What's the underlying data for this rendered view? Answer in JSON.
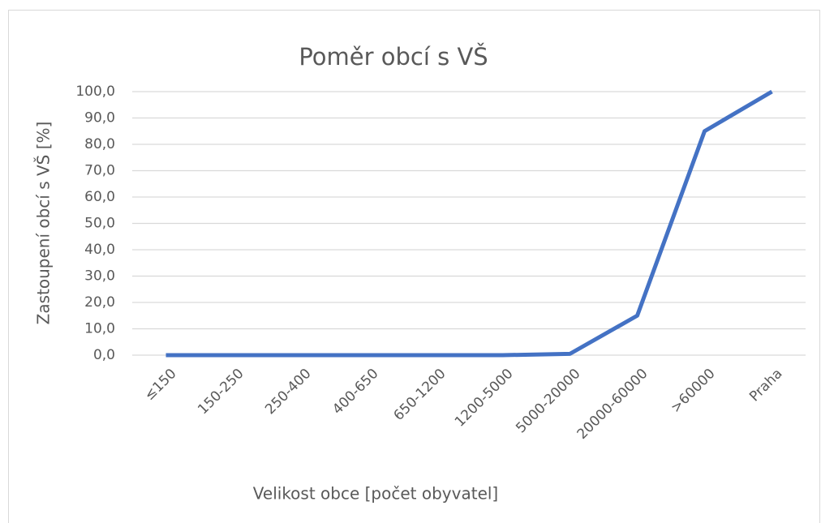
{
  "chart_data": {
    "type": "line",
    "title": "Poměr obcí s VŠ",
    "x_label": "Velikost obce [počet obyvatel]",
    "y_label": "Zastoupení obcí s VŠ [%]",
    "categories": [
      "≤150",
      "150-250",
      "250-400",
      "400-650",
      "650-1200",
      "1200-5000",
      "5000-20000",
      "20000-60000",
      ">60000",
      "Praha"
    ],
    "series": [
      {
        "name": "Zastoupení obcí s VŠ",
        "color": "#4472c4",
        "values": [
          0,
          0,
          0,
          0,
          0,
          0,
          0.5,
          15,
          85,
          100
        ]
      }
    ],
    "ylim": [
      0,
      100
    ],
    "yticks": [
      {
        "value": 0,
        "label": "0,0"
      },
      {
        "value": 10,
        "label": "10,0"
      },
      {
        "value": 20,
        "label": "20,0"
      },
      {
        "value": 30,
        "label": "30,0"
      },
      {
        "value": 40,
        "label": "40,0"
      },
      {
        "value": 50,
        "label": "50,0"
      },
      {
        "value": 60,
        "label": "60,0"
      },
      {
        "value": 70,
        "label": "70,0"
      },
      {
        "value": 80,
        "label": "80,0"
      },
      {
        "value": 90,
        "label": "90,0"
      },
      {
        "value": 100,
        "label": "100,0"
      }
    ],
    "grid": true
  }
}
